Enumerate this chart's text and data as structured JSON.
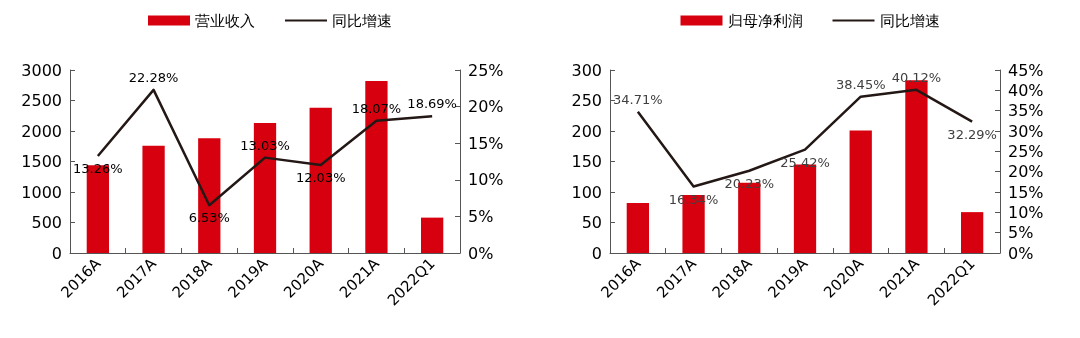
{
  "chart_data": [
    {
      "type": "bar",
      "categories": [
        "2016A",
        "2017A",
        "2018A",
        "2019A",
        "2020A",
        "2021A",
        "2022Q1"
      ],
      "legend": "top",
      "ylim": [
        0,
        3000
      ],
      "yticks": [
        0,
        500,
        1000,
        1500,
        2000,
        2500,
        3000
      ],
      "y2lim": [
        0,
        25
      ],
      "y2ticks": [
        {
          "value": 0,
          "label": "0%"
        },
        {
          "value": 5,
          "label": "5%"
        },
        {
          "value": 10,
          "label": "10%"
        },
        {
          "value": 15,
          "label": "15%"
        },
        {
          "value": 20,
          "label": "20%"
        },
        {
          "value": 25,
          "label": "25%"
        }
      ],
      "series": [
        {
          "name": "营业收入",
          "color": "#d7000f",
          "values": [
            1440,
            1760,
            1880,
            2130,
            2380,
            2820,
            580
          ]
        },
        {
          "name": "同比增速",
          "type": "line",
          "axis": "y2",
          "color": "#231815",
          "values": [
            13.26,
            22.28,
            6.53,
            13.03,
            12.03,
            18.07,
            18.69
          ],
          "value_labels": [
            "13.26%",
            "22.28%",
            "6.53%",
            "13.03%",
            "12.03%",
            "18.07%",
            "18.69%"
          ]
        }
      ]
    },
    {
      "type": "bar",
      "categories": [
        "2016A",
        "2017A",
        "2018A",
        "2019A",
        "2020A",
        "2021A",
        "2022Q1"
      ],
      "legend": "top",
      "ylim": [
        0,
        300
      ],
      "yticks": [
        0,
        50,
        100,
        150,
        200,
        250,
        300
      ],
      "y2lim": [
        0,
        45
      ],
      "y2ticks": [
        {
          "value": 0,
          "label": "0%"
        },
        {
          "value": 5,
          "label": "5%"
        },
        {
          "value": 10,
          "label": "10%"
        },
        {
          "value": 15,
          "label": "15%"
        },
        {
          "value": 20,
          "label": "20%"
        },
        {
          "value": 25,
          "label": "25%"
        },
        {
          "value": 30,
          "label": "30%"
        },
        {
          "value": 35,
          "label": "35%"
        },
        {
          "value": 40,
          "label": "40%"
        },
        {
          "value": 45,
          "label": "45%"
        }
      ],
      "series": [
        {
          "name": "归母净利润",
          "color": "#d7000f",
          "values": [
            82,
            95,
            115,
            145,
            201,
            283,
            67
          ]
        },
        {
          "name": "同比增速",
          "type": "line",
          "axis": "y2",
          "color": "#231815",
          "values": [
            34.71,
            16.34,
            20.23,
            25.42,
            38.45,
            40.12,
            32.29
          ],
          "value_labels": [
            "34.71%",
            "16.34%",
            "20.23%",
            "25.42%",
            "38.45%",
            "40.12%",
            "32.29%"
          ]
        }
      ]
    }
  ]
}
